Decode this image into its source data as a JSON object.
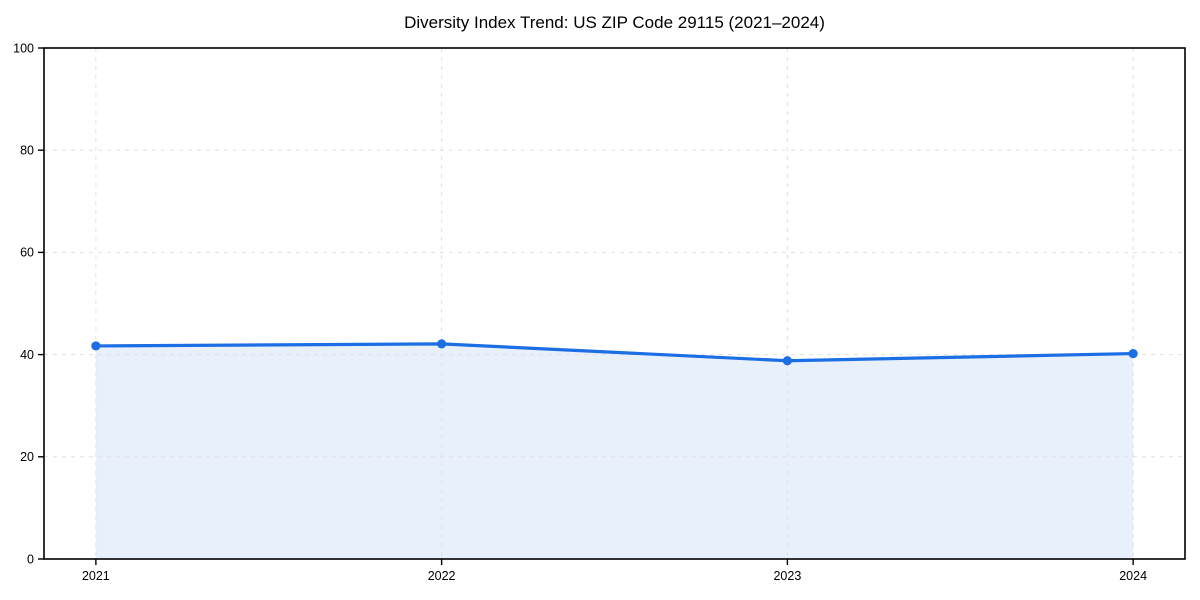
{
  "chart_data": {
    "type": "line",
    "title": "Diversity Index Trend: US ZIP Code 29115 (2021–2024)",
    "x": [
      2021,
      2022,
      2023,
      2024
    ],
    "x_tick_labels": [
      "2021",
      "2022",
      "2023",
      "2024"
    ],
    "series": [
      {
        "name": "Diversity Index",
        "values": [
          41.7,
          42.1,
          38.8,
          40.2
        ]
      }
    ],
    "xlabel": "",
    "ylabel": "",
    "y_ticks": [
      0,
      20,
      40,
      60,
      80,
      100
    ],
    "y_tick_labels": [
      "0",
      "20",
      "40",
      "60",
      "80",
      "100"
    ],
    "ylim": [
      0,
      100
    ],
    "xlim": [
      2020.85,
      2024.15
    ],
    "grid": "dashed-both-axes",
    "legend": "none",
    "area_fill": true,
    "marker": "circle",
    "colors": {
      "line": "#1b6ee3",
      "area": "rgba(27,110,227,0.10)",
      "grid": "#e0e0e0",
      "spine": "#000000",
      "text": "#000000",
      "background": "#ffffff"
    }
  }
}
